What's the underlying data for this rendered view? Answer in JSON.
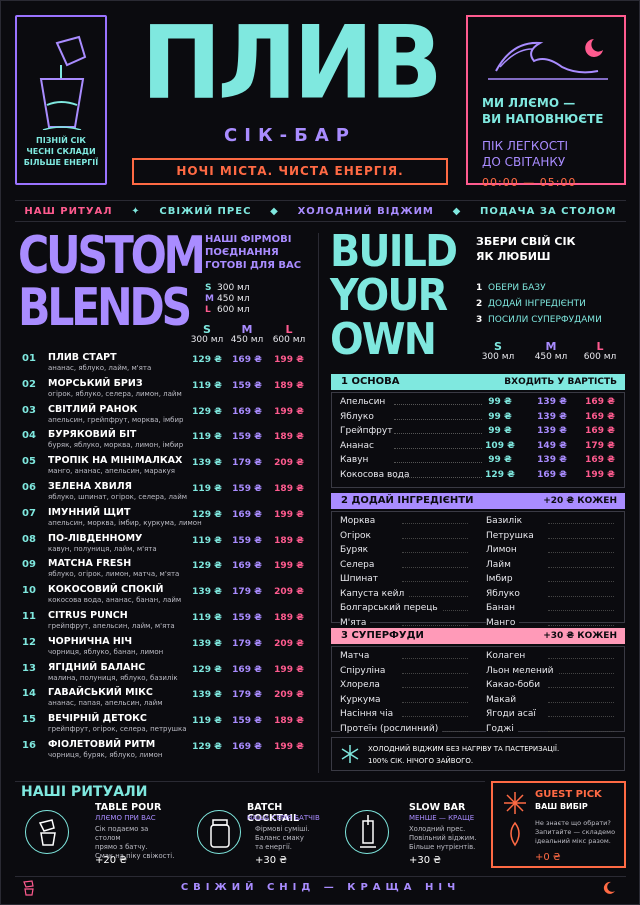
{
  "header": {
    "brand": "ПЛИВ",
    "subtitle": "СІК-БАР",
    "slogan": "НОЧІ МІСТА. ЧИСТА ЕНЕРГІЯ.",
    "left_text": [
      "ПІЗНІЙ СІК",
      "ЧЕСНІ СКЛАДИ",
      "БІЛЬШЕ ЕНЕРГІЇ"
    ],
    "right_line1": [
      "МИ ЛЛЄМО —",
      "ВИ НАПОВНЮЄТЕ"
    ],
    "right_line2": [
      "ПІК ЛЕГКОСТІ",
      "ДО СВІТАНКУ"
    ],
    "hours": "00:00 — 05:00"
  },
  "nav": [
    "НАШ РИТУАЛ",
    "СВІЖИЙ ПРЕС",
    "ХОЛОДНИЙ ВІДЖИМ",
    "ПОДАЧА ЗА СТОЛОМ"
  ],
  "custom": {
    "title_line1": "CUSTOM",
    "title_line2": "BLENDS",
    "note": [
      "НАШІ ФІРМОВІ",
      "ПОЄДНАННЯ",
      "ГОТОВІ ДЛЯ ВАС"
    ],
    "sizes": [
      {
        "l": "S",
        "v": "300 мл"
      },
      {
        "l": "M",
        "v": "450 мл"
      },
      {
        "l": "L",
        "v": "600 мл"
      }
    ],
    "cols": [
      {
        "l": "S",
        "v": "300 мл"
      },
      {
        "l": "M",
        "v": "450 мл"
      },
      {
        "l": "L",
        "v": "600 мл"
      }
    ],
    "items": [
      {
        "n": "01",
        "name": "ПЛИВ СТАРТ",
        "desc": "ананас, яблуко, лайм, м'ята",
        "s": "129 ₴",
        "m": "169 ₴",
        "l": "199 ₴"
      },
      {
        "n": "02",
        "name": "МОРСЬКИЙ БРИЗ",
        "desc": "огірок, яблуко, селера, лимон, лайм",
        "s": "119 ₴",
        "m": "159 ₴",
        "l": "189 ₴"
      },
      {
        "n": "03",
        "name": "СВІТЛИЙ РАНОК",
        "desc": "апельсин, грейпфрут, морква, імбир",
        "s": "129 ₴",
        "m": "169 ₴",
        "l": "199 ₴"
      },
      {
        "n": "04",
        "name": "БУРЯКОВИЙ БІТ",
        "desc": "буряк, яблуко, морква, лимон, імбир",
        "s": "119 ₴",
        "m": "159 ₴",
        "l": "189 ₴"
      },
      {
        "n": "05",
        "name": "ТРОПІК НА МІНІМАЛКАХ",
        "desc": "манго, ананас, апельсин, маракуя",
        "s": "139 ₴",
        "m": "179 ₴",
        "l": "209 ₴"
      },
      {
        "n": "06",
        "name": "ЗЕЛЕНА ХВИЛЯ",
        "desc": "яблуко, шпинат, огірок, селера, лайм",
        "s": "119 ₴",
        "m": "159 ₴",
        "l": "189 ₴"
      },
      {
        "n": "07",
        "name": "ІМУННИЙ ЩИТ",
        "desc": "апельсин, морква, імбир, куркума, лимон",
        "s": "129 ₴",
        "m": "169 ₴",
        "l": "199 ₴"
      },
      {
        "n": "08",
        "name": "ПО-ЛІВДЕННОМУ",
        "desc": "кавун, полуниця, лайм, м'ята",
        "s": "119 ₴",
        "m": "159 ₴",
        "l": "189 ₴"
      },
      {
        "n": "09",
        "name": "MATCHA FRESH",
        "desc": "яблуко, огірок, лимон, матча, м'ята",
        "s": "129 ₴",
        "m": "169 ₴",
        "l": "199 ₴"
      },
      {
        "n": "10",
        "name": "КОКОСОВИЙ СПОКІЙ",
        "desc": "кокосова вода, ананас, банан, лайм",
        "s": "139 ₴",
        "m": "179 ₴",
        "l": "209 ₴"
      },
      {
        "n": "11",
        "name": "CITRUS PUNCH",
        "desc": "грейпфрут, апельсин, лайм, м'ята",
        "s": "119 ₴",
        "m": "159 ₴",
        "l": "189 ₴"
      },
      {
        "n": "12",
        "name": "ЧОРНИЧНА НІЧ",
        "desc": "чорниця, яблуко, банан, лимон",
        "s": "139 ₴",
        "m": "179 ₴",
        "l": "209 ₴"
      },
      {
        "n": "13",
        "name": "ЯГІДНИЙ БАЛАНС",
        "desc": "малина, полуниця, яблуко, базилік",
        "s": "129 ₴",
        "m": "169 ₴",
        "l": "199 ₴"
      },
      {
        "n": "14",
        "name": "ГАВАЙСЬКИЙ МІКС",
        "desc": "ананас, папая, апельсин, лайм",
        "s": "139 ₴",
        "m": "179 ₴",
        "l": "209 ₴"
      },
      {
        "n": "15",
        "name": "ВЕЧІРНІЙ ДЕТОКС",
        "desc": "грейпфрут, огірок, селера, петрушка",
        "s": "119 ₴",
        "m": "159 ₴",
        "l": "189 ₴"
      },
      {
        "n": "16",
        "name": "ФІОЛЕТОВИЙ РИТМ",
        "desc": "чорниця, буряк, яблуко, лимон",
        "s": "129 ₴",
        "m": "169 ₴",
        "l": "199 ₴"
      }
    ]
  },
  "byo": {
    "title": [
      "BUILD",
      "YOUR",
      "OWN"
    ],
    "note": [
      "ЗБЕРИ СВІЙ СІК",
      "ЯК ЛЮБИШ"
    ],
    "steps": [
      {
        "n": "1",
        "t": "ОБЕРИ БАЗУ"
      },
      {
        "n": "2",
        "t": "ДОДАЙ ІНГРЕДІЄНТИ"
      },
      {
        "n": "3",
        "t": "ПОСИЛИ СУПЕРФУДАМИ"
      }
    ],
    "cols": [
      {
        "l": "S",
        "v": "300 мл"
      },
      {
        "l": "M",
        "v": "450 мл"
      },
      {
        "l": "L",
        "v": "600 мл"
      }
    ],
    "base": {
      "label": "1   ОСНОВА",
      "right": "ВХОДИТЬ У ВАРТІСТЬ",
      "items": [
        {
          "name": "Апельсин",
          "s": "99 ₴",
          "m": "139 ₴",
          "l": "169 ₴"
        },
        {
          "name": "Яблуко",
          "s": "99 ₴",
          "m": "139 ₴",
          "l": "169 ₴"
        },
        {
          "name": "Грейпфрут",
          "s": "99 ₴",
          "m": "139 ₴",
          "l": "169 ₴"
        },
        {
          "name": "Ананас",
          "s": "109 ₴",
          "m": "149 ₴",
          "l": "179 ₴"
        },
        {
          "name": "Кавун",
          "s": "99 ₴",
          "m": "139 ₴",
          "l": "169 ₴"
        },
        {
          "name": "Кокосова вода",
          "s": "129 ₴",
          "m": "169 ₴",
          "l": "199 ₴"
        }
      ]
    },
    "ingredients": {
      "label": "2   ДОДАЙ ІНГРЕДІЄНТИ",
      "right": "+20 ₴ КОЖЕН",
      "left": [
        "Морква",
        "Огірок",
        "Буряк",
        "Селера",
        "Шпинат",
        "Капуста кейл",
        "Болгарський перець",
        "М'ята"
      ],
      "rightcol": [
        "Базилік",
        "Петрушка",
        "Лимон",
        "Лайм",
        "Імбир",
        "Яблуко",
        "Банан",
        "Манго"
      ]
    },
    "superfoods": {
      "label": "3   СУПЕРФУДИ",
      "right": "+30 ₴ КОЖЕН",
      "left": [
        "Матча",
        "Спіруліна",
        "Хлорела",
        "Куркума",
        "Насіння чіа",
        "Протеїн (рослинний)"
      ],
      "rightcol": [
        "Колаген",
        "Льон мелений",
        "Какао-боби",
        "Макай",
        "Ягоди асаї",
        "Годжі"
      ]
    },
    "note_box": [
      "ХОЛОДНИЙ ВІДЖИМ БЕЗ НАГРІВУ ТА ПАСТЕРИЗАЦІЇ.",
      "100% СІК. НІЧОГО ЗАЙВОГО."
    ]
  },
  "rituals": {
    "title": "НАШІ РИТУАЛИ",
    "items": [
      {
        "name": "TABLE POUR",
        "sub": "ЛЛЄМО ПРИ ВАС",
        "desc": [
          "Сік подаємо за столом",
          "прямо з батчу.",
          "Смак на піку свіжості."
        ],
        "price": "+20 ₴",
        "icon": "pour-icon"
      },
      {
        "name": "BATCH COCKTAIL",
        "sub": "НАША СЕРІЯ БАТЧІВ",
        "desc": [
          "Фірмові суміші.",
          "Баланс смаку",
          "та енергії."
        ],
        "price": "+30 ₴",
        "icon": "jar-icon"
      },
      {
        "name": "SLOW BAR",
        "sub": "МЕНШЕ — КРАЩЕ",
        "desc": [
          "Холодний прес.",
          "Повільний віджим.",
          "Більше нутрієнтів."
        ],
        "price": "+30 ₴",
        "icon": "press-icon"
      }
    ],
    "guest": {
      "title": "GUEST PICK",
      "sub": "ВАШ ВИБІР",
      "desc": [
        "Не знаєте що обрати?",
        "Запитайте — складемо",
        "ідеальний мікс разом."
      ],
      "price": "+0 ₴"
    }
  },
  "footer": "СВІЖИЙ СНІД — КРАЩА НІЧ"
}
